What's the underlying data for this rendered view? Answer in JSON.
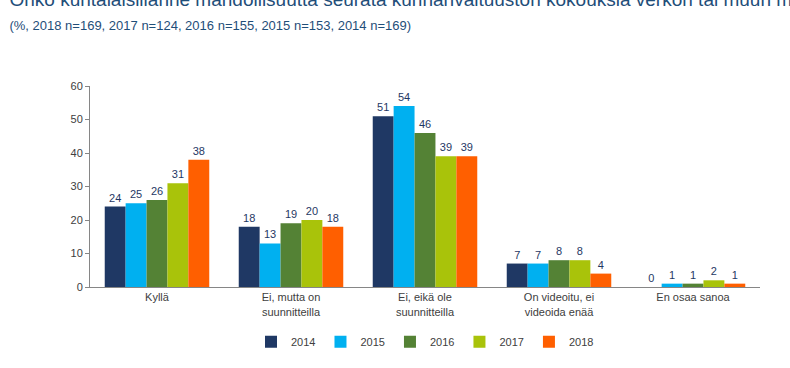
{
  "chart_data": {
    "type": "bar",
    "title": "Onko kuntalaisillanne mahdollisuutta seurata kunnanvaltuuston kokouksia verkon tai muun median välityksellä?",
    "subtitle": "(%, 2018 n=169, 2017 n=124, 2016 n=155, 2015 n=153, 2014 n=169)",
    "categories": [
      "Kyllä",
      "Ei, mutta on suunnitteilla",
      "Ei, eikä ole suunnitteilla",
      "On videoitu, ei videoida enää",
      "En osaa sanoa"
    ],
    "series": [
      {
        "name": "2014",
        "color": "#1f3864",
        "values": [
          24,
          18,
          51,
          7,
          0
        ]
      },
      {
        "name": "2015",
        "color": "#00b0f0",
        "values": [
          25,
          13,
          54,
          7,
          1
        ]
      },
      {
        "name": "2016",
        "color": "#548235",
        "values": [
          26,
          19,
          46,
          8,
          1
        ]
      },
      {
        "name": "2017",
        "color": "#a9c30a",
        "values": [
          31,
          20,
          39,
          8,
          2
        ]
      },
      {
        "name": "2018",
        "color": "#ff5f00",
        "values": [
          38,
          18,
          39,
          4,
          1
        ]
      }
    ],
    "ylim": [
      0,
      60
    ],
    "yticks": [
      0,
      10,
      20,
      30,
      40,
      50,
      60
    ],
    "grid": false,
    "legend": "bottom",
    "data_labels": true
  }
}
